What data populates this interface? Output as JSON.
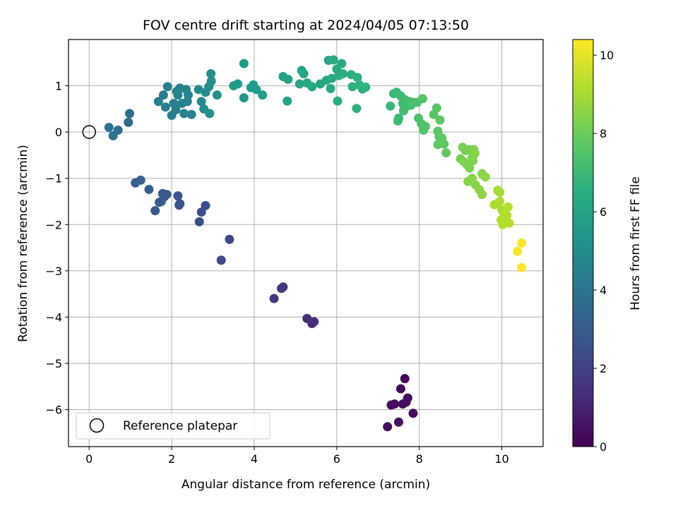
{
  "chart_data": {
    "type": "scatter",
    "title": "FOV centre drift starting at 2024/04/05 07:13:50",
    "xlabel": "Angular distance from reference (arcmin)",
    "ylabel": "Rotation from reference (arcmin)",
    "xlim": [
      -0.5,
      11.0
    ],
    "ylim": [
      -6.8,
      2.0
    ],
    "xticks": [
      0,
      2,
      4,
      6,
      8,
      10
    ],
    "yticks": [
      -6,
      -5,
      -4,
      -3,
      -2,
      -1,
      0,
      1
    ],
    "grid": true,
    "legend": {
      "placement": "lower-left",
      "entries": [
        {
          "label": "Reference platepar",
          "marker": "open-circle"
        }
      ]
    },
    "reference_point": {
      "x": 0.0,
      "y": 0.0
    },
    "colorbar": {
      "label": "Hours from first FF file",
      "colormap": "viridis",
      "range": [
        0,
        10.4
      ],
      "ticks": [
        0,
        2,
        4,
        6,
        8,
        10
      ]
    },
    "points": [
      {
        "x": 7.65,
        "y": -5.33,
        "h": 0.2
      },
      {
        "x": 7.55,
        "y": -5.55,
        "h": 0.2
      },
      {
        "x": 7.72,
        "y": -5.75,
        "h": 0.25
      },
      {
        "x": 7.4,
        "y": -5.88,
        "h": 0.25
      },
      {
        "x": 7.32,
        "y": -5.9,
        "h": 0.3
      },
      {
        "x": 7.6,
        "y": -5.88,
        "h": 0.3
      },
      {
        "x": 7.68,
        "y": -5.84,
        "h": 0.35
      },
      {
        "x": 7.85,
        "y": -6.08,
        "h": 0.35
      },
      {
        "x": 7.5,
        "y": -6.27,
        "h": 0.4
      },
      {
        "x": 7.23,
        "y": -6.37,
        "h": 0.4
      },
      {
        "x": 5.45,
        "y": -4.1,
        "h": 1.3
      },
      {
        "x": 5.4,
        "y": -4.14,
        "h": 1.3
      },
      {
        "x": 5.28,
        "y": -4.03,
        "h": 1.35
      },
      {
        "x": 4.7,
        "y": -3.35,
        "h": 1.65
      },
      {
        "x": 4.66,
        "y": -3.38,
        "h": 1.65
      },
      {
        "x": 4.48,
        "y": -3.6,
        "h": 1.7
      },
      {
        "x": 3.4,
        "y": -2.32,
        "h": 2.2
      },
      {
        "x": 3.2,
        "y": -2.77,
        "h": 2.2
      },
      {
        "x": 2.82,
        "y": -1.59,
        "h": 2.45
      },
      {
        "x": 2.72,
        "y": -1.73,
        "h": 2.45
      },
      {
        "x": 2.67,
        "y": -1.94,
        "h": 2.5
      },
      {
        "x": 2.15,
        "y": -1.38,
        "h": 2.7
      },
      {
        "x": 2.2,
        "y": -1.55,
        "h": 2.7
      },
      {
        "x": 2.18,
        "y": -1.58,
        "h": 2.75
      },
      {
        "x": 1.88,
        "y": -1.35,
        "h": 2.9
      },
      {
        "x": 1.78,
        "y": -1.33,
        "h": 2.9
      },
      {
        "x": 1.82,
        "y": -1.4,
        "h": 2.95
      },
      {
        "x": 1.75,
        "y": -1.5,
        "h": 2.95
      },
      {
        "x": 1.7,
        "y": -1.52,
        "h": 3.0
      },
      {
        "x": 1.6,
        "y": -1.7,
        "h": 3.0
      },
      {
        "x": 1.45,
        "y": -1.24,
        "h": 3.1
      },
      {
        "x": 1.25,
        "y": -1.04,
        "h": 3.2
      },
      {
        "x": 1.12,
        "y": -1.1,
        "h": 3.2
      },
      {
        "x": 0.98,
        "y": 0.4,
        "h": 3.7
      },
      {
        "x": 0.95,
        "y": 0.21,
        "h": 3.7
      },
      {
        "x": 0.48,
        "y": 0.1,
        "h": 3.85
      },
      {
        "x": 0.7,
        "y": 0.04,
        "h": 3.85
      },
      {
        "x": 0.58,
        "y": -0.08,
        "h": 3.9
      },
      {
        "x": 1.68,
        "y": 0.66,
        "h": 4.4
      },
      {
        "x": 1.8,
        "y": 0.8,
        "h": 4.4
      },
      {
        "x": 1.85,
        "y": 0.54,
        "h": 4.45
      },
      {
        "x": 1.9,
        "y": 0.98,
        "h": 4.45
      },
      {
        "x": 2.0,
        "y": 0.36,
        "h": 4.5
      },
      {
        "x": 2.05,
        "y": 0.62,
        "h": 4.5
      },
      {
        "x": 2.1,
        "y": 0.48,
        "h": 4.55
      },
      {
        "x": 2.15,
        "y": 0.8,
        "h": 4.55
      },
      {
        "x": 2.2,
        "y": 0.95,
        "h": 4.6
      },
      {
        "x": 2.25,
        "y": 0.62,
        "h": 4.6
      },
      {
        "x": 2.3,
        "y": 0.4,
        "h": 4.65
      },
      {
        "x": 2.35,
        "y": 0.92,
        "h": 4.65
      },
      {
        "x": 2.38,
        "y": 0.66,
        "h": 4.7
      },
      {
        "x": 2.4,
        "y": 0.8,
        "h": 4.7
      },
      {
        "x": 2.48,
        "y": 0.38,
        "h": 4.75
      },
      {
        "x": 2.12,
        "y": 0.88,
        "h": 4.75
      },
      {
        "x": 2.65,
        "y": 0.92,
        "h": 5.0
      },
      {
        "x": 2.72,
        "y": 0.66,
        "h": 5.0
      },
      {
        "x": 2.78,
        "y": 0.5,
        "h": 5.05
      },
      {
        "x": 2.82,
        "y": 0.86,
        "h": 5.05
      },
      {
        "x": 2.92,
        "y": 0.4,
        "h": 5.1
      },
      {
        "x": 2.9,
        "y": 0.98,
        "h": 5.1
      },
      {
        "x": 2.96,
        "y": 1.1,
        "h": 5.15
      },
      {
        "x": 2.95,
        "y": 1.26,
        "h": 5.15
      },
      {
        "x": 3.1,
        "y": 0.8,
        "h": 5.2
      },
      {
        "x": 3.75,
        "y": 1.48,
        "h": 5.6
      },
      {
        "x": 3.5,
        "y": 1.0,
        "h": 5.6
      },
      {
        "x": 3.6,
        "y": 1.04,
        "h": 5.65
      },
      {
        "x": 3.75,
        "y": 0.74,
        "h": 5.65
      },
      {
        "x": 3.92,
        "y": 0.96,
        "h": 5.7
      },
      {
        "x": 3.98,
        "y": 1.02,
        "h": 5.7
      },
      {
        "x": 4.05,
        "y": 0.92,
        "h": 5.75
      },
      {
        "x": 4.2,
        "y": 0.8,
        "h": 5.75
      },
      {
        "x": 4.7,
        "y": 1.2,
        "h": 6.0
      },
      {
        "x": 4.82,
        "y": 1.14,
        "h": 6.0
      },
      {
        "x": 4.8,
        "y": 0.67,
        "h": 6.05
      },
      {
        "x": 5.1,
        "y": 1.04,
        "h": 6.1
      },
      {
        "x": 5.15,
        "y": 1.33,
        "h": 6.1
      },
      {
        "x": 5.2,
        "y": 1.26,
        "h": 6.15
      },
      {
        "x": 5.28,
        "y": 1.06,
        "h": 6.15
      },
      {
        "x": 5.4,
        "y": 0.98,
        "h": 6.2
      },
      {
        "x": 5.6,
        "y": 1.04,
        "h": 6.2
      },
      {
        "x": 5.75,
        "y": 1.12,
        "h": 6.25
      },
      {
        "x": 5.8,
        "y": 1.55,
        "h": 6.25
      },
      {
        "x": 5.88,
        "y": 1.16,
        "h": 6.3
      },
      {
        "x": 5.85,
        "y": 0.94,
        "h": 6.3
      },
      {
        "x": 5.92,
        "y": 1.56,
        "h": 6.35
      },
      {
        "x": 6.0,
        "y": 1.36,
        "h": 6.35
      },
      {
        "x": 6.05,
        "y": 1.22,
        "h": 6.4
      },
      {
        "x": 6.12,
        "y": 1.48,
        "h": 6.4
      },
      {
        "x": 6.15,
        "y": 1.26,
        "h": 6.45
      },
      {
        "x": 6.02,
        "y": 0.67,
        "h": 6.45
      },
      {
        "x": 6.35,
        "y": 1.24,
        "h": 6.55
      },
      {
        "x": 6.38,
        "y": 0.98,
        "h": 6.55
      },
      {
        "x": 6.5,
        "y": 1.18,
        "h": 6.6
      },
      {
        "x": 6.48,
        "y": 0.51,
        "h": 6.6
      },
      {
        "x": 6.55,
        "y": 1.02,
        "h": 6.65
      },
      {
        "x": 6.62,
        "y": 0.93,
        "h": 6.65
      },
      {
        "x": 6.7,
        "y": 0.97,
        "h": 6.7
      },
      {
        "x": 7.3,
        "y": 0.56,
        "h": 7.0
      },
      {
        "x": 7.38,
        "y": 0.83,
        "h": 7.0
      },
      {
        "x": 7.45,
        "y": 0.86,
        "h": 7.05
      },
      {
        "x": 7.5,
        "y": 0.3,
        "h": 7.05
      },
      {
        "x": 7.48,
        "y": 0.24,
        "h": 7.1
      },
      {
        "x": 7.55,
        "y": 0.78,
        "h": 7.1
      },
      {
        "x": 7.6,
        "y": 0.62,
        "h": 7.15
      },
      {
        "x": 7.62,
        "y": 0.46,
        "h": 7.15
      },
      {
        "x": 7.65,
        "y": 0.7,
        "h": 7.2
      },
      {
        "x": 7.7,
        "y": 0.56,
        "h": 7.2
      },
      {
        "x": 7.75,
        "y": 0.66,
        "h": 7.25
      },
      {
        "x": 7.8,
        "y": 0.58,
        "h": 7.25
      },
      {
        "x": 7.85,
        "y": 0.64,
        "h": 7.3
      },
      {
        "x": 7.98,
        "y": 0.3,
        "h": 7.4
      },
      {
        "x": 7.95,
        "y": 0.64,
        "h": 7.4
      },
      {
        "x": 8.05,
        "y": 0.18,
        "h": 7.45
      },
      {
        "x": 8.1,
        "y": 0.04,
        "h": 7.45
      },
      {
        "x": 8.15,
        "y": 0.12,
        "h": 7.5
      },
      {
        "x": 8.08,
        "y": 0.72,
        "h": 7.5
      },
      {
        "x": 8.35,
        "y": 0.38,
        "h": 7.65
      },
      {
        "x": 8.42,
        "y": 0.52,
        "h": 7.65
      },
      {
        "x": 8.5,
        "y": 0.26,
        "h": 7.7
      },
      {
        "x": 8.45,
        "y": 0.02,
        "h": 7.7
      },
      {
        "x": 8.48,
        "y": -0.1,
        "h": 7.75
      },
      {
        "x": 8.55,
        "y": -0.13,
        "h": 7.75
      },
      {
        "x": 8.45,
        "y": -0.27,
        "h": 7.8
      },
      {
        "x": 8.6,
        "y": -0.26,
        "h": 7.8
      },
      {
        "x": 8.65,
        "y": -0.45,
        "h": 7.85
      },
      {
        "x": 9.05,
        "y": -0.33,
        "h": 8.2
      },
      {
        "x": 9.12,
        "y": -0.4,
        "h": 8.2
      },
      {
        "x": 9.2,
        "y": -0.38,
        "h": 8.25
      },
      {
        "x": 9.0,
        "y": -0.58,
        "h": 8.25
      },
      {
        "x": 9.08,
        "y": -0.64,
        "h": 8.3
      },
      {
        "x": 9.15,
        "y": -0.7,
        "h": 8.3
      },
      {
        "x": 9.22,
        "y": -0.78,
        "h": 8.35
      },
      {
        "x": 9.28,
        "y": -0.55,
        "h": 8.35
      },
      {
        "x": 9.3,
        "y": -0.62,
        "h": 8.4
      },
      {
        "x": 9.32,
        "y": -0.38,
        "h": 8.4
      },
      {
        "x": 9.35,
        "y": -0.46,
        "h": 8.45
      },
      {
        "x": 9.18,
        "y": -1.07,
        "h": 8.45
      },
      {
        "x": 9.28,
        "y": -1.0,
        "h": 8.5
      },
      {
        "x": 9.36,
        "y": -1.14,
        "h": 8.5
      },
      {
        "x": 9.45,
        "y": -1.24,
        "h": 8.55
      },
      {
        "x": 9.52,
        "y": -0.9,
        "h": 8.55
      },
      {
        "x": 9.6,
        "y": -0.97,
        "h": 8.6
      },
      {
        "x": 9.52,
        "y": -1.35,
        "h": 8.6
      },
      {
        "x": 9.9,
        "y": -1.26,
        "h": 9.0
      },
      {
        "x": 9.95,
        "y": -1.3,
        "h": 9.0
      },
      {
        "x": 9.82,
        "y": -1.57,
        "h": 9.05
      },
      {
        "x": 9.9,
        "y": -1.54,
        "h": 9.05
      },
      {
        "x": 9.95,
        "y": -1.5,
        "h": 9.1
      },
      {
        "x": 10.0,
        "y": -1.68,
        "h": 9.1
      },
      {
        "x": 10.05,
        "y": -1.75,
        "h": 9.15
      },
      {
        "x": 9.98,
        "y": -1.9,
        "h": 9.15
      },
      {
        "x": 10.08,
        "y": -1.96,
        "h": 9.2
      },
      {
        "x": 10.12,
        "y": -1.8,
        "h": 9.2
      },
      {
        "x": 10.15,
        "y": -1.62,
        "h": 9.25
      },
      {
        "x": 10.02,
        "y": -2.0,
        "h": 9.25
      },
      {
        "x": 10.18,
        "y": -1.97,
        "h": 9.3
      },
      {
        "x": 10.48,
        "y": -2.4,
        "h": 10.3
      },
      {
        "x": 10.38,
        "y": -2.58,
        "h": 10.3
      },
      {
        "x": 10.48,
        "y": -2.93,
        "h": 10.35
      }
    ]
  }
}
